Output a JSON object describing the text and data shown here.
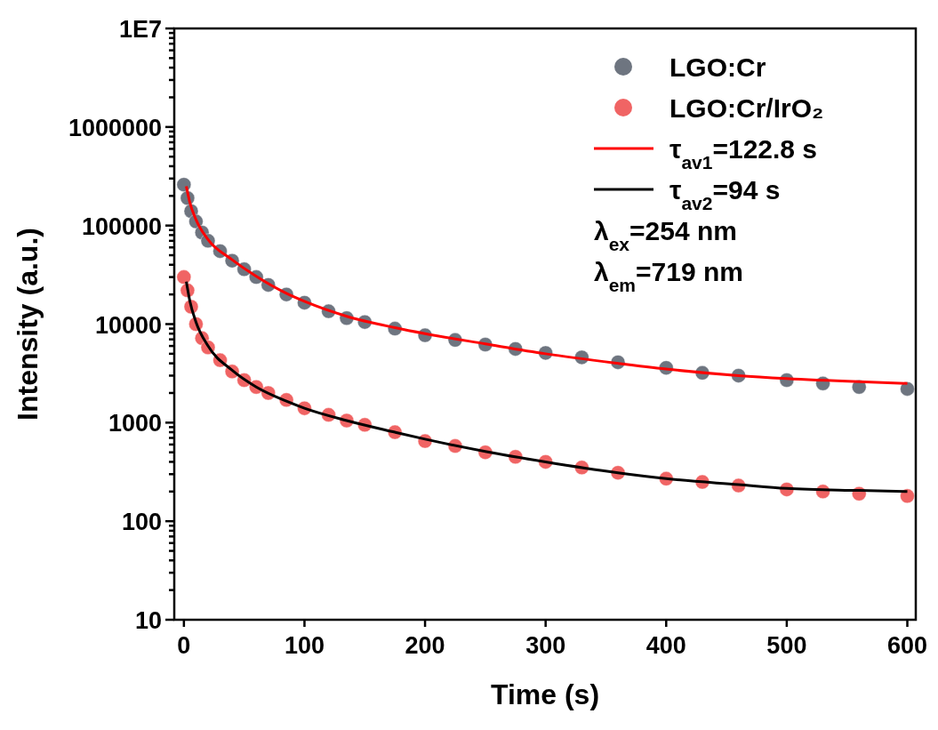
{
  "chart_data": {
    "type": "scatter",
    "xlabel": "Time (s)",
    "ylabel": "Intensity (a.u.)",
    "log": "y",
    "xlim": [
      -8,
      607
    ],
    "ylim": [
      10,
      10000000
    ],
    "xticks": [
      0,
      100,
      200,
      300,
      400,
      500,
      600
    ],
    "yticks": [
      10,
      {
        "value": 20,
        "label": null
      },
      {
        "value": 30,
        "label": null
      },
      {
        "value": 40,
        "label": null
      },
      {
        "value": 50,
        "label": null
      },
      {
        "value": 60,
        "label": null
      },
      {
        "value": 70,
        "label": null
      },
      {
        "value": 80,
        "label": null
      },
      {
        "value": 90,
        "label": null
      },
      100,
      {
        "value": 200,
        "label": null
      },
      {
        "value": 300,
        "label": null
      },
      {
        "value": 400,
        "label": null
      },
      {
        "value": 500,
        "label": null
      },
      {
        "value": 600,
        "label": null
      },
      {
        "value": 700,
        "label": null
      },
      {
        "value": 800,
        "label": null
      },
      {
        "value": 900,
        "label": null
      },
      1000,
      {
        "value": 2000,
        "label": null
      },
      {
        "value": 3000,
        "label": null
      },
      {
        "value": 4000,
        "label": null
      },
      {
        "value": 5000,
        "label": null
      },
      {
        "value": 6000,
        "label": null
      },
      {
        "value": 7000,
        "label": null
      },
      {
        "value": 8000,
        "label": null
      },
      {
        "value": 9000,
        "label": null
      },
      10000,
      {
        "value": 20000,
        "label": null
      },
      {
        "value": 30000,
        "label": null
      },
      {
        "value": 40000,
        "label": null
      },
      {
        "value": 50000,
        "label": null
      },
      {
        "value": 60000,
        "label": null
      },
      {
        "value": 70000,
        "label": null
      },
      {
        "value": 80000,
        "label": null
      },
      {
        "value": 90000,
        "label": null
      },
      100000,
      {
        "value": 200000,
        "label": null
      },
      {
        "value": 300000,
        "label": null
      },
      {
        "value": 400000,
        "label": null
      },
      {
        "value": 500000,
        "label": null
      },
      {
        "value": 600000,
        "label": null
      },
      {
        "value": 700000,
        "label": null
      },
      {
        "value": 800000,
        "label": null
      },
      {
        "value": 900000,
        "label": null
      },
      1000000,
      {
        "value": 2000000,
        "label": null
      },
      {
        "value": 3000000,
        "label": null
      },
      {
        "value": 4000000,
        "label": null
      },
      {
        "value": 5000000,
        "label": null
      },
      {
        "value": 6000000,
        "label": null
      },
      {
        "value": 7000000,
        "label": null
      },
      {
        "value": 8000000,
        "label": null
      },
      {
        "value": 9000000,
        "label": null
      },
      {
        "value": 10000000,
        "label": "1E7"
      }
    ],
    "grid": false,
    "legend": "top right",
    "marker": "circle",
    "series": [
      {
        "name": "LGO:Cr",
        "color": "#6e7580",
        "x": [
          0,
          3,
          6,
          10,
          15,
          20,
          30,
          40,
          50,
          60,
          70,
          85,
          100,
          120,
          135,
          150,
          175,
          200,
          225,
          250,
          275,
          300,
          330,
          360,
          400,
          430,
          460,
          500,
          530,
          560,
          600
        ],
        "values": [
          260000,
          190000,
          140000,
          110000,
          85000,
          70000,
          55000,
          44000,
          36000,
          30000,
          25000,
          20000,
          16500,
          13500,
          11500,
          10500,
          9000,
          7700,
          6900,
          6200,
          5600,
          5100,
          4600,
          4100,
          3600,
          3200,
          3000,
          2700,
          2500,
          2300,
          2200
        ]
      },
      {
        "name": "LGO:Cr/IrO₂",
        "color": "#f06464",
        "x": [
          0,
          3,
          6,
          10,
          15,
          20,
          30,
          40,
          50,
          60,
          70,
          85,
          100,
          120,
          135,
          150,
          175,
          200,
          225,
          250,
          275,
          300,
          330,
          360,
          400,
          430,
          460,
          500,
          530,
          560,
          600
        ],
        "values": [
          30000,
          22000,
          15000,
          10000,
          7200,
          5800,
          4300,
          3300,
          2700,
          2300,
          2000,
          1700,
          1400,
          1200,
          1050,
          950,
          800,
          650,
          580,
          500,
          450,
          400,
          350,
          310,
          270,
          250,
          230,
          210,
          200,
          190,
          180
        ]
      },
      {
        "name": "τ$_{av1}$=122.8 s",
        "type": "line",
        "line_style": "solid",
        "marker": "none",
        "color": "#ff0000",
        "x": [
          2,
          5,
          10,
          20,
          40,
          60,
          85,
          100,
          135,
          175,
          200,
          250,
          300,
          360,
          400,
          460,
          500,
          560,
          600
        ],
        "values": [
          250000,
          170000,
          115000,
          72000,
          45000,
          30500,
          20500,
          17000,
          12000,
          9200,
          8000,
          6300,
          5000,
          4000,
          3500,
          3000,
          2800,
          2600,
          2500
        ]
      },
      {
        "name": "τ$_{av2}$=94 s",
        "type": "line",
        "line_style": "solid",
        "marker": "none",
        "color": "#000000",
        "x": [
          2,
          5,
          10,
          20,
          40,
          60,
          85,
          100,
          135,
          175,
          200,
          250,
          300,
          360,
          400,
          460,
          500,
          560,
          600
        ],
        "values": [
          27000,
          17000,
          10500,
          6000,
          3400,
          2300,
          1650,
          1400,
          1050,
          800,
          680,
          510,
          400,
          310,
          270,
          235,
          215,
          205,
          200
        ]
      }
    ],
    "annotations": [
      "λ$_{ex}$=254 nm",
      "λ$_{em}$=719 nm"
    ]
  }
}
